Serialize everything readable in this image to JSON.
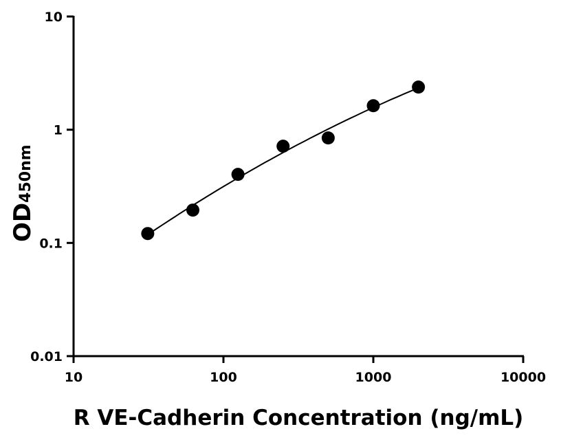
{
  "chart_data": {
    "type": "scatter",
    "title": "",
    "xlabel": "R VE-Cadherin Concentration (ng/mL)",
    "ylabel": "OD",
    "ylabel_subscript": "450nm",
    "x_scale": "log",
    "y_scale": "log",
    "xlim": [
      10,
      10000
    ],
    "ylim": [
      0.01,
      10
    ],
    "x_ticks": [
      "10",
      "100",
      "1000",
      "10000"
    ],
    "y_ticks": [
      "0.01",
      "0.1",
      "1",
      "10"
    ],
    "grid": false,
    "fit_line": true,
    "marker_color": "#000000",
    "series": [
      {
        "x": [
          31.25,
          62.5,
          125,
          250,
          500,
          1000,
          2000
        ],
        "y": [
          0.121,
          0.195,
          0.403,
          0.715,
          0.846,
          1.63,
          2.38
        ]
      }
    ]
  }
}
